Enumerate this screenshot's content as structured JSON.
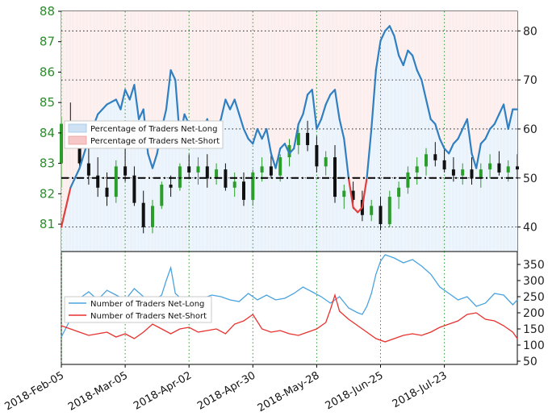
{
  "chart_data": [
    {
      "type": "candlestick+line",
      "title": "",
      "price_axis": {
        "side": "left",
        "ticks": [
          81,
          82,
          83,
          84,
          85,
          86,
          87,
          88
        ],
        "ylim": [
          80.1,
          88
        ],
        "color": "#2e8b2e"
      },
      "pct_axis": {
        "side": "right",
        "ticks": [
          40,
          50,
          60,
          70,
          80
        ],
        "ylim": [
          35,
          84
        ]
      },
      "x_ticks": [
        "2018-Feb-05",
        "2018-Mar-05",
        "2018-Apr-02",
        "2018-Apr-30",
        "2018-May-28",
        "2018-Jun-25",
        "2018-Jul-23"
      ],
      "x_range_days": [
        0,
        200
      ],
      "x_tick_days": [
        0,
        28,
        56,
        84,
        112,
        140,
        168
      ],
      "reference_line": {
        "label": "50%",
        "value": 50
      },
      "legend": {
        "placement": "center-left",
        "entries": [
          {
            "label": "Percentage of Traders Net-Long",
            "color": "#cfe2f3"
          },
          {
            "label": "Percentage of Traders Net-Short",
            "color": "#f7c6c6"
          }
        ]
      },
      "colors": {
        "up": "#2a9d2a",
        "down": "#111111",
        "long_line": "#2f7fc1",
        "short_line": "#e04040",
        "long_fill": "#eaf3fb",
        "short_fill": "#fdeeee"
      },
      "pct_net_long_points": [
        [
          0,
          40
        ],
        [
          4,
          48
        ],
        [
          8,
          52
        ],
        [
          12,
          58
        ],
        [
          16,
          63
        ],
        [
          20,
          65
        ],
        [
          24,
          66
        ],
        [
          26,
          64
        ],
        [
          28,
          68
        ],
        [
          30,
          66
        ],
        [
          32,
          69
        ],
        [
          34,
          62
        ],
        [
          36,
          64
        ],
        [
          38,
          55
        ],
        [
          40,
          52
        ],
        [
          42,
          55
        ],
        [
          44,
          60
        ],
        [
          46,
          64
        ],
        [
          48,
          72
        ],
        [
          50,
          70
        ],
        [
          52,
          58
        ],
        [
          54,
          63
        ],
        [
          56,
          61
        ],
        [
          58,
          60
        ],
        [
          60,
          58
        ],
        [
          62,
          60
        ],
        [
          64,
          62
        ],
        [
          66,
          59
        ],
        [
          68,
          60
        ],
        [
          70,
          62
        ],
        [
          72,
          66
        ],
        [
          74,
          64
        ],
        [
          76,
          66
        ],
        [
          78,
          63
        ],
        [
          80,
          60
        ],
        [
          82,
          58
        ],
        [
          84,
          57
        ],
        [
          86,
          60
        ],
        [
          88,
          58
        ],
        [
          90,
          60
        ],
        [
          92,
          55
        ],
        [
          94,
          52
        ],
        [
          96,
          56
        ],
        [
          98,
          57
        ],
        [
          100,
          55
        ],
        [
          102,
          56
        ],
        [
          104,
          61
        ],
        [
          106,
          63
        ],
        [
          108,
          67
        ],
        [
          110,
          68
        ],
        [
          112,
          60
        ],
        [
          114,
          62
        ],
        [
          116,
          65
        ],
        [
          118,
          67
        ],
        [
          120,
          68
        ],
        [
          122,
          62
        ],
        [
          124,
          58
        ],
        [
          126,
          50
        ],
        [
          128,
          44
        ],
        [
          130,
          43
        ],
        [
          132,
          44
        ],
        [
          134,
          50
        ],
        [
          136,
          60
        ],
        [
          138,
          72
        ],
        [
          140,
          78
        ],
        [
          142,
          80
        ],
        [
          144,
          81
        ],
        [
          146,
          79
        ],
        [
          148,
          75
        ],
        [
          150,
          73
        ],
        [
          152,
          76
        ],
        [
          154,
          75
        ],
        [
          156,
          72
        ],
        [
          158,
          70
        ],
        [
          160,
          66
        ],
        [
          162,
          62
        ],
        [
          164,
          61
        ],
        [
          166,
          58
        ],
        [
          168,
          56
        ],
        [
          170,
          55
        ],
        [
          172,
          57
        ],
        [
          174,
          58
        ],
        [
          176,
          60
        ],
        [
          178,
          62
        ],
        [
          180,
          55
        ],
        [
          182,
          52
        ],
        [
          184,
          57
        ],
        [
          186,
          58
        ],
        [
          188,
          60
        ],
        [
          190,
          61
        ],
        [
          192,
          63
        ],
        [
          194,
          65
        ],
        [
          196,
          60
        ],
        [
          198,
          64
        ],
        [
          200,
          64
        ]
      ],
      "price_candles_approx": [
        [
          0,
          83.0,
          84.5,
          82.2,
          84.3
        ],
        [
          4,
          84.3,
          85.0,
          83.5,
          84.0
        ],
        [
          8,
          84.0,
          84.4,
          82.8,
          83.0
        ],
        [
          12,
          83.0,
          83.6,
          82.3,
          82.6
        ],
        [
          16,
          82.6,
          83.2,
          81.9,
          82.2
        ],
        [
          20,
          82.2,
          82.7,
          81.6,
          81.9
        ],
        [
          24,
          81.9,
          83.1,
          81.7,
          82.9
        ],
        [
          28,
          82.9,
          83.5,
          82.4,
          82.6
        ],
        [
          32,
          82.6,
          82.9,
          81.6,
          81.7
        ],
        [
          36,
          81.7,
          82.1,
          80.7,
          80.9
        ],
        [
          40,
          80.9,
          81.8,
          80.7,
          81.6
        ],
        [
          44,
          81.6,
          82.4,
          81.5,
          82.3
        ],
        [
          48,
          82.3,
          82.6,
          81.9,
          82.2
        ],
        [
          52,
          82.2,
          83.0,
          82.1,
          82.9
        ],
        [
          56,
          82.9,
          83.3,
          82.5,
          82.7
        ],
        [
          60,
          82.7,
          83.2,
          82.3,
          82.9
        ],
        [
          64,
          82.9,
          83.3,
          82.2,
          82.5
        ],
        [
          68,
          82.5,
          83.0,
          82.3,
          82.8
        ],
        [
          72,
          82.8,
          83.0,
          82.1,
          82.2
        ],
        [
          76,
          82.2,
          82.7,
          81.9,
          82.4
        ],
        [
          80,
          82.4,
          82.7,
          81.6,
          81.8
        ],
        [
          84,
          81.8,
          82.8,
          81.6,
          82.7
        ],
        [
          88,
          82.7,
          83.2,
          82.4,
          82.9
        ],
        [
          92,
          82.9,
          83.3,
          82.5,
          82.6
        ],
        [
          96,
          82.6,
          83.3,
          82.4,
          83.2
        ],
        [
          100,
          83.2,
          83.8,
          82.9,
          83.6
        ],
        [
          104,
          83.6,
          84.2,
          83.3,
          84.0
        ],
        [
          108,
          84.0,
          84.4,
          83.4,
          83.6
        ],
        [
          112,
          83.6,
          83.9,
          82.7,
          82.9
        ],
        [
          116,
          82.9,
          83.4,
          82.6,
          83.2
        ],
        [
          120,
          83.2,
          83.6,
          81.7,
          81.9
        ],
        [
          124,
          81.9,
          82.3,
          81.5,
          82.1
        ],
        [
          128,
          82.1,
          82.4,
          81.5,
          81.8
        ],
        [
          132,
          81.8,
          82.1,
          81.1,
          81.3
        ],
        [
          136,
          81.3,
          81.8,
          81.1,
          81.6
        ],
        [
          140,
          81.6,
          81.9,
          80.8,
          81.0
        ],
        [
          144,
          81.0,
          82.1,
          80.9,
          81.9
        ],
        [
          148,
          81.9,
          82.4,
          81.5,
          82.2
        ],
        [
          152,
          82.2,
          82.9,
          82.0,
          82.7
        ],
        [
          156,
          82.7,
          83.2,
          82.3,
          82.9
        ],
        [
          160,
          82.9,
          83.5,
          82.6,
          83.3
        ],
        [
          164,
          83.3,
          83.7,
          82.9,
          83.1
        ],
        [
          168,
          83.1,
          83.5,
          82.7,
          82.8
        ],
        [
          172,
          82.8,
          83.2,
          82.4,
          82.6
        ],
        [
          176,
          82.6,
          83.0,
          82.3,
          82.8
        ],
        [
          180,
          82.8,
          83.2,
          82.3,
          82.5
        ],
        [
          184,
          82.5,
          83.0,
          82.2,
          82.8
        ],
        [
          188,
          82.8,
          83.3,
          82.5,
          83.0
        ],
        [
          192,
          83.0,
          83.4,
          82.6,
          82.7
        ],
        [
          196,
          82.7,
          83.1,
          82.4,
          82.9
        ],
        [
          200,
          82.9,
          83.3,
          82.5,
          82.8
        ]
      ]
    },
    {
      "type": "line",
      "title": "",
      "y_axis": {
        "side": "right",
        "ticks": [
          50,
          100,
          150,
          200,
          250,
          300,
          350
        ],
        "ylim": [
          40,
          390
        ]
      },
      "legend": {
        "placement": "center-left",
        "entries": [
          {
            "label": "Number of Traders Net-Long",
            "color": "#4aa3df"
          },
          {
            "label": "Number of Traders Net-Short",
            "color": "#e8312f"
          }
        ]
      },
      "series": [
        {
          "name": "Number of Traders Net-Long",
          "points": [
            [
              0,
              125
            ],
            [
              4,
              180
            ],
            [
              8,
              245
            ],
            [
              12,
              265
            ],
            [
              16,
              240
            ],
            [
              20,
              270
            ],
            [
              24,
              255
            ],
            [
              28,
              240
            ],
            [
              32,
              275
            ],
            [
              36,
              250
            ],
            [
              40,
              235
            ],
            [
              44,
              255
            ],
            [
              46,
              300
            ],
            [
              48,
              340
            ],
            [
              50,
              260
            ],
            [
              54,
              235
            ],
            [
              58,
              230
            ],
            [
              62,
              245
            ],
            [
              66,
              255
            ],
            [
              70,
              250
            ],
            [
              74,
              240
            ],
            [
              78,
              235
            ],
            [
              82,
              260
            ],
            [
              86,
              240
            ],
            [
              90,
              255
            ],
            [
              94,
              240
            ],
            [
              98,
              245
            ],
            [
              102,
              260
            ],
            [
              106,
              280
            ],
            [
              110,
              265
            ],
            [
              114,
              250
            ],
            [
              118,
              230
            ],
            [
              122,
              250
            ],
            [
              126,
              215
            ],
            [
              130,
              200
            ],
            [
              132,
              195
            ],
            [
              134,
              220
            ],
            [
              136,
              260
            ],
            [
              138,
              320
            ],
            [
              140,
              360
            ],
            [
              142,
              380
            ],
            [
              146,
              370
            ],
            [
              150,
              355
            ],
            [
              154,
              365
            ],
            [
              158,
              345
            ],
            [
              162,
              320
            ],
            [
              166,
              280
            ],
            [
              170,
              260
            ],
            [
              174,
              240
            ],
            [
              178,
              250
            ],
            [
              182,
              220
            ],
            [
              186,
              230
            ],
            [
              190,
              260
            ],
            [
              194,
              255
            ],
            [
              198,
              225
            ],
            [
              200,
              240
            ]
          ]
        },
        {
          "name": "Number of Traders Net-Short",
          "points": [
            [
              0,
              160
            ],
            [
              4,
              150
            ],
            [
              8,
              140
            ],
            [
              12,
              130
            ],
            [
              16,
              135
            ],
            [
              20,
              140
            ],
            [
              24,
              125
            ],
            [
              28,
              135
            ],
            [
              32,
              120
            ],
            [
              36,
              140
            ],
            [
              40,
              165
            ],
            [
              44,
              150
            ],
            [
              48,
              135
            ],
            [
              52,
              150
            ],
            [
              56,
              155
            ],
            [
              60,
              140
            ],
            [
              64,
              145
            ],
            [
              68,
              150
            ],
            [
              72,
              135
            ],
            [
              76,
              165
            ],
            [
              80,
              175
            ],
            [
              84,
              195
            ],
            [
              88,
              150
            ],
            [
              92,
              140
            ],
            [
              96,
              145
            ],
            [
              100,
              135
            ],
            [
              104,
              130
            ],
            [
              108,
              140
            ],
            [
              112,
              150
            ],
            [
              116,
              170
            ],
            [
              118,
              210
            ],
            [
              120,
              255
            ],
            [
              122,
              205
            ],
            [
              126,
              180
            ],
            [
              130,
              160
            ],
            [
              134,
              140
            ],
            [
              138,
              120
            ],
            [
              142,
              110
            ],
            [
              146,
              120
            ],
            [
              150,
              130
            ],
            [
              154,
              135
            ],
            [
              158,
              130
            ],
            [
              162,
              140
            ],
            [
              166,
              155
            ],
            [
              170,
              165
            ],
            [
              174,
              175
            ],
            [
              178,
              195
            ],
            [
              182,
              200
            ],
            [
              186,
              180
            ],
            [
              190,
              175
            ],
            [
              194,
              160
            ],
            [
              198,
              140
            ],
            [
              200,
              120
            ]
          ]
        }
      ]
    }
  ]
}
